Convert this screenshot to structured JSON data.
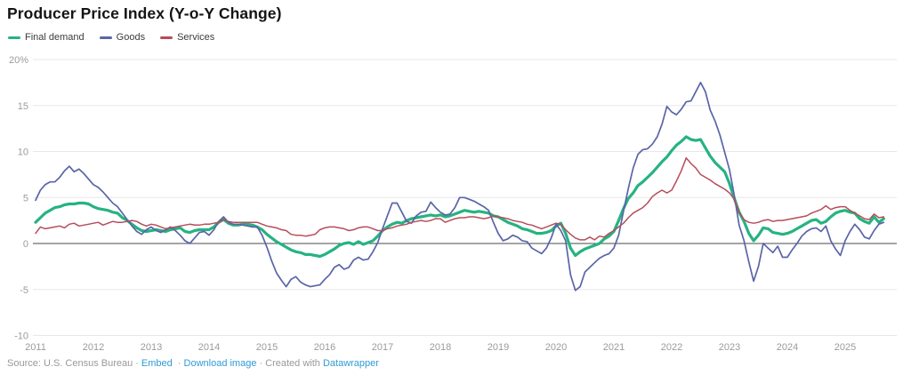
{
  "header": {
    "title": "Producer Price Index (Y-o-Y Change)"
  },
  "footer": {
    "source_label": "Source: U.S. Census Bureau",
    "sep": "·",
    "embed_link": "Embed",
    "download_link": "Download image",
    "created_with": "Created with",
    "brand_link": "Datawrapper"
  },
  "colors": {
    "title": "#141414",
    "axis_label": "#9b9b9b",
    "grid_line": "#e7e7e7",
    "zero_line": "#4a4a4a",
    "link_blue": "#2f9bd6",
    "footer_text": "#989898"
  },
  "chart_data": {
    "type": "line",
    "title": "Producer Price Index (Y-o-Y Change)",
    "x_unit": "month",
    "x_start": "2011-01",
    "x_end": "2025-09",
    "grid": "horizontal",
    "legend_position": "top-left",
    "ylim": [
      -10,
      20
    ],
    "y_tick_values": [
      20,
      15,
      10,
      5,
      0,
      -5,
      -10
    ],
    "y_tick_labels": [
      "20%",
      "15",
      "10",
      "5",
      "0",
      "-5",
      "-10"
    ],
    "x_tick_labels": [
      "2011",
      "2012",
      "2013",
      "2014",
      "2015",
      "2016",
      "2017",
      "2018",
      "2019",
      "2020",
      "2021",
      "2022",
      "2023",
      "2024",
      "2025"
    ],
    "series": [
      {
        "name": "Final demand",
        "color": "#26b381",
        "stroke_width": 3.2,
        "values": [
          2.3,
          2.8,
          3.3,
          3.6,
          3.9,
          4.0,
          4.2,
          4.3,
          4.3,
          4.4,
          4.4,
          4.3,
          4.0,
          3.8,
          3.7,
          3.6,
          3.4,
          3.3,
          2.8,
          2.5,
          2.1,
          1.7,
          1.4,
          1.3,
          1.4,
          1.5,
          1.4,
          1.3,
          1.5,
          1.6,
          1.7,
          1.3,
          1.2,
          1.4,
          1.5,
          1.5,
          1.5,
          1.8,
          2.3,
          2.6,
          2.2,
          2.0,
          2.0,
          2.1,
          2.1,
          2.0,
          1.8,
          1.5,
          1.0,
          0.6,
          0.2,
          -0.1,
          -0.4,
          -0.7,
          -0.9,
          -1.0,
          -1.2,
          -1.2,
          -1.3,
          -1.4,
          -1.2,
          -0.9,
          -0.6,
          -0.2,
          0.0,
          0.1,
          -0.1,
          0.2,
          -0.1,
          0.1,
          0.3,
          0.8,
          1.4,
          1.8,
          2.1,
          2.3,
          2.2,
          2.5,
          2.7,
          2.8,
          2.9,
          3.0,
          3.1,
          3.0,
          3.1,
          2.9,
          3.0,
          3.2,
          3.4,
          3.6,
          3.5,
          3.4,
          3.5,
          3.4,
          3.3,
          3.0,
          2.9,
          2.6,
          2.3,
          2.1,
          1.9,
          1.6,
          1.5,
          1.3,
          1.1,
          1.1,
          1.2,
          1.4,
          1.9,
          2.2,
          1.1,
          -0.5,
          -1.3,
          -0.9,
          -0.6,
          -0.4,
          -0.2,
          0.0,
          0.5,
          0.8,
          1.3,
          2.5,
          3.8,
          4.9,
          5.5,
          6.3,
          6.7,
          7.2,
          7.7,
          8.3,
          8.9,
          9.4,
          10.1,
          10.7,
          11.1,
          11.6,
          11.3,
          11.2,
          11.3,
          10.4,
          9.5,
          8.8,
          8.3,
          7.8,
          6.5,
          4.9,
          3.4,
          2.4,
          1.1,
          0.3,
          0.9,
          1.7,
          1.6,
          1.2,
          1.1,
          1.0,
          1.1,
          1.3,
          1.6,
          1.9,
          2.2,
          2.5,
          2.6,
          2.2,
          2.4,
          2.9,
          3.3,
          3.5,
          3.6,
          3.4,
          3.3,
          2.7,
          2.4,
          2.2,
          2.9,
          2.3,
          2.7
        ]
      },
      {
        "name": "Goods",
        "color": "#5a64a8",
        "stroke_width": 1.7,
        "values": [
          4.7,
          5.8,
          6.4,
          6.7,
          6.7,
          7.2,
          7.9,
          8.4,
          7.8,
          8.1,
          7.6,
          7.0,
          6.4,
          6.1,
          5.6,
          5.0,
          4.4,
          4.0,
          3.3,
          2.6,
          1.9,
          1.3,
          1.0,
          1.5,
          1.8,
          1.4,
          1.2,
          1.5,
          1.8,
          1.4,
          0.9,
          0.3,
          0.0,
          0.6,
          1.2,
          1.3,
          0.9,
          1.5,
          2.4,
          2.9,
          2.3,
          2.1,
          2.1,
          2.0,
          1.9,
          1.8,
          1.8,
          0.9,
          -0.4,
          -1.9,
          -3.2,
          -4.0,
          -4.7,
          -3.9,
          -3.6,
          -4.2,
          -4.5,
          -4.7,
          -4.6,
          -4.5,
          -3.9,
          -3.4,
          -2.6,
          -2.3,
          -2.8,
          -2.6,
          -1.8,
          -1.5,
          -1.8,
          -1.7,
          -0.9,
          0.1,
          1.6,
          3.0,
          4.4,
          4.4,
          3.4,
          2.4,
          2.2,
          3.0,
          3.4,
          3.5,
          4.5,
          3.9,
          3.4,
          3.1,
          3.2,
          3.9,
          5.0,
          5.0,
          4.8,
          4.6,
          4.3,
          4.0,
          3.6,
          2.3,
          1.1,
          0.3,
          0.5,
          0.9,
          0.7,
          0.3,
          0.2,
          -0.5,
          -0.8,
          -1.1,
          -0.5,
          0.6,
          2.1,
          1.4,
          0.3,
          -3.4,
          -5.1,
          -4.7,
          -3.1,
          -2.6,
          -2.1,
          -1.6,
          -1.3,
          -1.1,
          -0.5,
          0.9,
          3.5,
          6.0,
          8.2,
          9.7,
          10.2,
          10.3,
          10.8,
          11.6,
          13.0,
          14.9,
          14.3,
          14.0,
          14.6,
          15.4,
          15.5,
          16.5,
          17.5,
          16.5,
          14.5,
          13.3,
          11.8,
          9.9,
          8.0,
          5.2,
          2.0,
          0.3,
          -2.0,
          -4.1,
          -2.5,
          0.0,
          -0.5,
          -1.0,
          -0.3,
          -1.5,
          -1.5,
          -0.7,
          0.0,
          0.8,
          1.3,
          1.6,
          1.7,
          1.3,
          1.9,
          0.3,
          -0.6,
          -1.3,
          0.3,
          1.3,
          2.1,
          1.5,
          0.7,
          0.5,
          1.4,
          2.1,
          2.3
        ]
      },
      {
        "name": "Services",
        "color": "#b54d5a",
        "stroke_width": 1.5,
        "values": [
          1.1,
          1.8,
          1.6,
          1.7,
          1.8,
          1.9,
          1.7,
          2.1,
          2.2,
          1.9,
          2.0,
          2.1,
          2.2,
          2.3,
          2.0,
          2.2,
          2.4,
          2.3,
          2.3,
          2.4,
          2.5,
          2.4,
          2.1,
          1.9,
          2.1,
          2.0,
          1.8,
          1.6,
          1.7,
          1.8,
          1.9,
          2.0,
          2.1,
          2.0,
          2.0,
          2.1,
          2.1,
          2.2,
          2.3,
          2.6,
          2.4,
          2.3,
          2.3,
          2.3,
          2.3,
          2.3,
          2.3,
          2.1,
          1.9,
          1.8,
          1.7,
          1.5,
          1.4,
          1.0,
          0.9,
          0.9,
          0.8,
          0.9,
          1.0,
          1.5,
          1.7,
          1.8,
          1.8,
          1.7,
          1.6,
          1.4,
          1.5,
          1.7,
          1.8,
          1.8,
          1.6,
          1.4,
          1.4,
          1.6,
          1.7,
          1.9,
          2.0,
          2.1,
          2.3,
          2.4,
          2.5,
          2.4,
          2.5,
          2.7,
          2.7,
          2.3,
          2.5,
          2.7,
          2.8,
          2.8,
          2.9,
          2.9,
          2.8,
          2.7,
          2.8,
          3.0,
          2.9,
          2.8,
          2.7,
          2.5,
          2.4,
          2.3,
          2.1,
          2.0,
          1.8,
          1.6,
          1.8,
          2.0,
          2.2,
          2.1,
          1.5,
          1.0,
          0.6,
          0.4,
          0.4,
          0.7,
          0.4,
          0.8,
          0.7,
          1.1,
          1.4,
          1.8,
          2.2,
          2.8,
          3.3,
          3.6,
          3.9,
          4.4,
          5.1,
          5.5,
          5.8,
          5.5,
          5.8,
          6.8,
          7.9,
          9.3,
          8.7,
          8.2,
          7.5,
          7.2,
          6.9,
          6.5,
          6.2,
          5.9,
          5.5,
          4.8,
          3.4,
          2.6,
          2.3,
          2.2,
          2.3,
          2.5,
          2.6,
          2.4,
          2.5,
          2.5,
          2.6,
          2.7,
          2.8,
          2.9,
          3.0,
          3.3,
          3.5,
          3.7,
          4.1,
          3.7,
          3.9,
          4.0,
          4.0,
          3.6,
          3.3,
          3.0,
          2.7,
          2.6,
          3.2,
          2.8,
          2.9
        ]
      }
    ]
  }
}
